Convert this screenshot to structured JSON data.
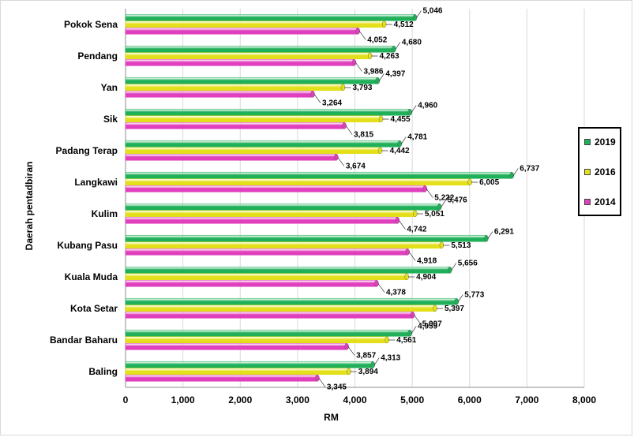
{
  "chart_data": {
    "type": "bar",
    "orientation": "horizontal",
    "categories": [
      "Pokok Sena",
      "Pendang",
      "Yan",
      "Sik",
      "Padang Terap",
      "Langkawi",
      "Kulim",
      "Kubang Pasu",
      "Kuala Muda",
      "Kota Setar",
      "Bandar Baharu",
      "Baling"
    ],
    "series": [
      {
        "name": "2019",
        "color": "#21b05a",
        "values": [
          5046,
          4680,
          4397,
          4960,
          4781,
          6737,
          5476,
          6291,
          5656,
          5773,
          4959,
          4313
        ]
      },
      {
        "name": "2016",
        "color": "#e3e01b",
        "values": [
          4512,
          4263,
          3793,
          4455,
          4442,
          6005,
          5051,
          5513,
          4904,
          5397,
          4561,
          3894
        ]
      },
      {
        "name": "2014",
        "color": "#e03fbd",
        "values": [
          4052,
          3986,
          3264,
          3815,
          3674,
          5222,
          4742,
          4918,
          4378,
          5007,
          3857,
          3345
        ]
      }
    ],
    "data_labels": [
      [
        "5,046",
        "4,680",
        "4,397",
        "4,960",
        "4,781",
        "6,737",
        "5,476",
        "6,291",
        "5,656",
        "5,773",
        "4,959",
        "4,313"
      ],
      [
        "4,512",
        "4,263",
        "3,793",
        "4,455",
        "4,442",
        "6,005",
        "5,051",
        "5,513",
        "4,904",
        "5,397",
        "4,561",
        "3,894"
      ],
      [
        "4,052",
        "3,986",
        "3,264",
        "3,815",
        "3,674",
        "5,222",
        "4,742",
        "4,918",
        "4,378",
        "5,007",
        "3,857",
        "3,345"
      ]
    ],
    "xlabel": "RM",
    "ylabel": "Daerah pentadbiran",
    "xlim": [
      0,
      8000
    ],
    "xticks": [
      0,
      1000,
      2000,
      3000,
      4000,
      5000,
      6000,
      7000,
      8000
    ],
    "xtick_labels": [
      "0",
      "1,000",
      "2,000",
      "3,000",
      "4,000",
      "5,000",
      "6,000",
      "7,000",
      "8,000"
    ],
    "grid": true,
    "legend_position": "right",
    "legend_order": [
      "2019",
      "2016",
      "2014"
    ]
  }
}
